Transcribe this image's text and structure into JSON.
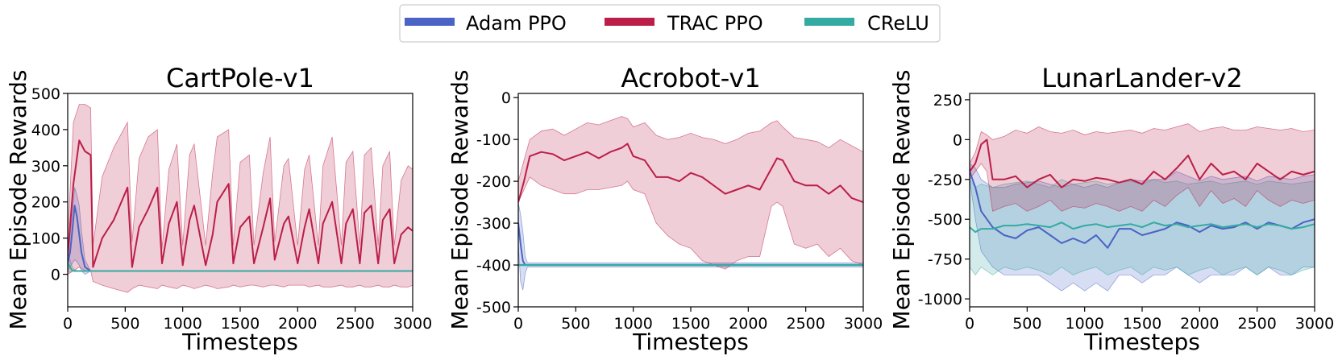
{
  "legend": {
    "entries": [
      {
        "name": "Adam PPO",
        "color": "#4a63c4"
      },
      {
        "name": "TRAC PPO",
        "color": "#bb1e48"
      },
      {
        "name": "CReLU",
        "color": "#35aaa3"
      }
    ]
  },
  "chart_data": [
    {
      "type": "line",
      "title": "CartPole-v1",
      "xlabel": "Timesteps",
      "ylabel": "Mean Episode Rewards",
      "xlim": [
        0,
        3000
      ],
      "ylim": [
        -90,
        500
      ],
      "xticks": [
        0,
        500,
        1000,
        1500,
        2000,
        2500,
        3000
      ],
      "yticks": [
        0,
        100,
        200,
        300,
        400,
        500
      ],
      "series": [
        {
          "name": "Adam PPO",
          "color": "#4a63c4",
          "x": [
            0,
            20,
            40,
            60,
            80,
            100,
            120,
            150,
            200,
            3000
          ],
          "y": [
            30,
            60,
            120,
            190,
            160,
            110,
            60,
            20,
            9,
            9
          ],
          "lower": [
            10,
            20,
            30,
            40,
            35,
            25,
            10,
            0,
            9,
            9
          ],
          "upper": [
            50,
            100,
            170,
            240,
            220,
            190,
            120,
            40,
            9,
            9
          ]
        },
        {
          "name": "TRAC PPO",
          "color": "#bb1e48",
          "x": [
            0,
            50,
            100,
            150,
            200,
            220,
            300,
            400,
            520,
            560,
            620,
            700,
            780,
            820,
            880,
            950,
            1000,
            1060,
            1100,
            1200,
            1260,
            1300,
            1400,
            1440,
            1500,
            1580,
            1620,
            1700,
            1760,
            1800,
            1880,
            1920,
            2000,
            2060,
            2100,
            2180,
            2220,
            2300,
            2380,
            2420,
            2480,
            2540,
            2580,
            2640,
            2700,
            2740,
            2800,
            2840,
            2900,
            2960,
            3000
          ],
          "y": [
            50,
            250,
            370,
            340,
            330,
            20,
            100,
            150,
            240,
            20,
            130,
            180,
            240,
            30,
            140,
            200,
            25,
            150,
            190,
            25,
            110,
            200,
            250,
            30,
            130,
            160,
            30,
            130,
            210,
            40,
            140,
            160,
            30,
            130,
            180,
            30,
            140,
            200,
            30,
            140,
            180,
            30,
            170,
            190,
            30,
            150,
            180,
            30,
            110,
            130,
            120
          ],
          "lower": [
            0,
            10,
            20,
            10,
            10,
            -20,
            -30,
            -40,
            -50,
            -40,
            -30,
            -35,
            -40,
            -30,
            -35,
            -40,
            -30,
            -35,
            -40,
            -30,
            -35,
            -40,
            -35,
            -30,
            -35,
            -30,
            -30,
            -35,
            -30,
            -30,
            -35,
            -30,
            -30,
            -30,
            -35,
            -30,
            -35,
            -35,
            -30,
            -35,
            -35,
            -30,
            -35,
            -35,
            -30,
            -35,
            -35,
            -30,
            -35,
            -35,
            -30
          ],
          "upper": [
            100,
            420,
            470,
            470,
            460,
            80,
            270,
            350,
            420,
            90,
            320,
            380,
            400,
            70,
            290,
            360,
            80,
            330,
            360,
            80,
            280,
            380,
            400,
            80,
            310,
            330,
            80,
            280,
            380,
            90,
            300,
            320,
            80,
            290,
            330,
            80,
            300,
            380,
            80,
            310,
            340,
            80,
            330,
            350,
            80,
            300,
            340,
            80,
            260,
            300,
            290
          ]
        },
        {
          "name": "CReLU",
          "color": "#35aaa3",
          "x": [
            0,
            20,
            40,
            60,
            100,
            3000
          ],
          "y": [
            30,
            20,
            10,
            9,
            9,
            9
          ],
          "lower": [
            10,
            5,
            9,
            9,
            9,
            9
          ],
          "upper": [
            50,
            40,
            20,
            12,
            9,
            9
          ]
        }
      ]
    },
    {
      "type": "line",
      "title": "Acrobot-v1",
      "xlabel": "Timesteps",
      "ylabel": "Mean Episode Rewards",
      "xlim": [
        0,
        3000
      ],
      "ylim": [
        -500,
        10
      ],
      "xticks": [
        0,
        500,
        1000,
        1500,
        2000,
        2500,
        3000
      ],
      "yticks": [
        0,
        -100,
        -200,
        -300,
        -400,
        -500
      ],
      "series": [
        {
          "name": "Adam PPO",
          "color": "#4a63c4",
          "x": [
            0,
            20,
            40,
            60,
            80,
            3000
          ],
          "y": [
            -300,
            -350,
            -390,
            -400,
            -400,
            -400
          ],
          "lower": [
            -350,
            -440,
            -460,
            -420,
            -405,
            -405
          ],
          "upper": [
            -250,
            -280,
            -320,
            -380,
            -395,
            -395
          ]
        },
        {
          "name": "TRAC PPO",
          "color": "#bb1e48",
          "x": [
            0,
            50,
            100,
            200,
            300,
            400,
            500,
            600,
            700,
            800,
            900,
            950,
            1000,
            1100,
            1200,
            1300,
            1400,
            1500,
            1600,
            1700,
            1800,
            1900,
            2000,
            2100,
            2200,
            2250,
            2300,
            2400,
            2500,
            2600,
            2700,
            2800,
            2900,
            3000
          ],
          "y": [
            -250,
            -200,
            -140,
            -130,
            -135,
            -150,
            -140,
            -130,
            -145,
            -130,
            -120,
            -110,
            -140,
            -150,
            -190,
            -190,
            -200,
            -180,
            -190,
            -210,
            -230,
            -220,
            -210,
            -220,
            -170,
            -145,
            -150,
            -200,
            -210,
            -210,
            -230,
            -210,
            -240,
            -250
          ],
          "lower": [
            -250,
            -220,
            -190,
            -210,
            -220,
            -230,
            -230,
            -220,
            -220,
            -215,
            -210,
            -200,
            -220,
            -230,
            -300,
            -330,
            -350,
            -360,
            -390,
            -400,
            -410,
            -390,
            -380,
            -380,
            -260,
            -250,
            -260,
            -350,
            -360,
            -350,
            -380,
            -360,
            -390,
            -400
          ],
          "upper": [
            -200,
            -150,
            -100,
            -80,
            -75,
            -90,
            -75,
            -60,
            -65,
            -55,
            -45,
            -50,
            -70,
            -60,
            -90,
            -100,
            -95,
            -85,
            -95,
            -100,
            -110,
            -100,
            -85,
            -80,
            -60,
            -55,
            -70,
            -95,
            -100,
            -105,
            -120,
            -100,
            -115,
            -130
          ]
        },
        {
          "name": "CReLU",
          "color": "#35aaa3",
          "x": [
            0,
            3000
          ],
          "y": [
            -400,
            -400
          ],
          "lower": [
            -402,
            -402
          ],
          "upper": [
            -398,
            -398
          ]
        }
      ]
    },
    {
      "type": "line",
      "title": "LunarLander-v2",
      "xlabel": "Timesteps",
      "ylabel": "Mean Episode Rewards",
      "xlim": [
        0,
        3000
      ],
      "ylim": [
        -1050,
        290
      ],
      "xticks": [
        0,
        500,
        1000,
        1500,
        2000,
        2500,
        3000
      ],
      "yticks": [
        250,
        0,
        -250,
        -500,
        -750,
        -1000
      ],
      "series": [
        {
          "name": "Adam PPO",
          "color": "#4a63c4",
          "x": [
            0,
            50,
            100,
            200,
            300,
            400,
            500,
            600,
            700,
            800,
            900,
            1000,
            1100,
            1200,
            1300,
            1400,
            1500,
            1600,
            1700,
            1800,
            1900,
            2000,
            2100,
            2200,
            2300,
            2400,
            2500,
            2600,
            2700,
            2800,
            2900,
            3000
          ],
          "y": [
            -200,
            -300,
            -450,
            -550,
            -600,
            -620,
            -570,
            -550,
            -600,
            -650,
            -620,
            -650,
            -600,
            -680,
            -560,
            -560,
            -600,
            -580,
            -560,
            -520,
            -540,
            -580,
            -540,
            -560,
            -550,
            -520,
            -560,
            -520,
            -540,
            -560,
            -520,
            -500
          ],
          "lower": [
            -250,
            -500,
            -700,
            -800,
            -850,
            -850,
            -850,
            -850,
            -900,
            -950,
            -900,
            -950,
            -900,
            -950,
            -850,
            -850,
            -900,
            -850,
            -850,
            -800,
            -850,
            -900,
            -850,
            -850,
            -850,
            -800,
            -850,
            -800,
            -850,
            -850,
            -800,
            -800
          ],
          "upper": [
            -150,
            -180,
            -250,
            -300,
            -300,
            -280,
            -270,
            -260,
            -280,
            -300,
            -280,
            -300,
            -280,
            -300,
            -270,
            -250,
            -260,
            -250,
            -250,
            -200,
            -230,
            -260,
            -230,
            -250,
            -240,
            -230,
            -260,
            -230,
            -240,
            -250,
            -230,
            -220
          ]
        },
        {
          "name": "TRAC PPO",
          "color": "#bb1e48",
          "x": [
            0,
            50,
            100,
            150,
            200,
            300,
            400,
            500,
            600,
            700,
            800,
            900,
            1000,
            1100,
            1200,
            1300,
            1400,
            1500,
            1600,
            1700,
            1800,
            1900,
            2000,
            2100,
            2200,
            2300,
            2400,
            2500,
            2600,
            2700,
            2800,
            2900,
            3000
          ],
          "y": [
            -200,
            -150,
            -30,
            0,
            -250,
            -250,
            -230,
            -300,
            -250,
            -220,
            -300,
            -250,
            -260,
            -240,
            -250,
            -270,
            -250,
            -280,
            -200,
            -250,
            -180,
            -100,
            -250,
            -150,
            -220,
            -200,
            -250,
            -150,
            -200,
            -250,
            -200,
            -220,
            -200
          ],
          "lower": [
            -250,
            -200,
            -150,
            -200,
            -450,
            -420,
            -400,
            -450,
            -420,
            -380,
            -450,
            -420,
            -430,
            -400,
            -420,
            -450,
            -420,
            -450,
            -380,
            -420,
            -350,
            -300,
            -420,
            -320,
            -400,
            -370,
            -420,
            -320,
            -380,
            -420,
            -380,
            -400,
            -380
          ],
          "upper": [
            -150,
            -80,
            50,
            30,
            0,
            20,
            60,
            40,
            80,
            50,
            40,
            60,
            30,
            50,
            40,
            50,
            60,
            40,
            70,
            60,
            80,
            100,
            50,
            70,
            80,
            60,
            60,
            80,
            70,
            60,
            70,
            50,
            60
          ]
        },
        {
          "name": "CReLU",
          "color": "#35aaa3",
          "x": [
            0,
            50,
            100,
            200,
            300,
            400,
            500,
            600,
            700,
            800,
            900,
            1000,
            1100,
            1200,
            1300,
            1400,
            1500,
            1600,
            1700,
            1800,
            1900,
            2000,
            2100,
            2200,
            2300,
            2400,
            2500,
            2600,
            2700,
            2800,
            2900,
            3000
          ],
          "y": [
            -550,
            -580,
            -560,
            -560,
            -540,
            -540,
            -530,
            -540,
            -550,
            -520,
            -560,
            -540,
            -530,
            -550,
            -540,
            -530,
            -550,
            -520,
            -540,
            -530,
            -550,
            -540,
            -530,
            -550,
            -540,
            -530,
            -550,
            -530,
            -540,
            -560,
            -550,
            -530
          ],
          "lower": [
            -800,
            -850,
            -800,
            -850,
            -800,
            -820,
            -800,
            -820,
            -850,
            -800,
            -850,
            -820,
            -800,
            -850,
            -820,
            -800,
            -850,
            -800,
            -820,
            -800,
            -850,
            -820,
            -800,
            -850,
            -820,
            -800,
            -850,
            -800,
            -820,
            -850,
            -820,
            -800
          ],
          "upper": [
            -250,
            -300,
            -280,
            -300,
            -280,
            -270,
            -260,
            -280,
            -300,
            -250,
            -280,
            -270,
            -260,
            -280,
            -270,
            -260,
            -280,
            -250,
            -270,
            -260,
            -280,
            -270,
            -260,
            -280,
            -270,
            -260,
            -280,
            -260,
            -270,
            -280,
            -270,
            -260
          ]
        }
      ]
    }
  ]
}
